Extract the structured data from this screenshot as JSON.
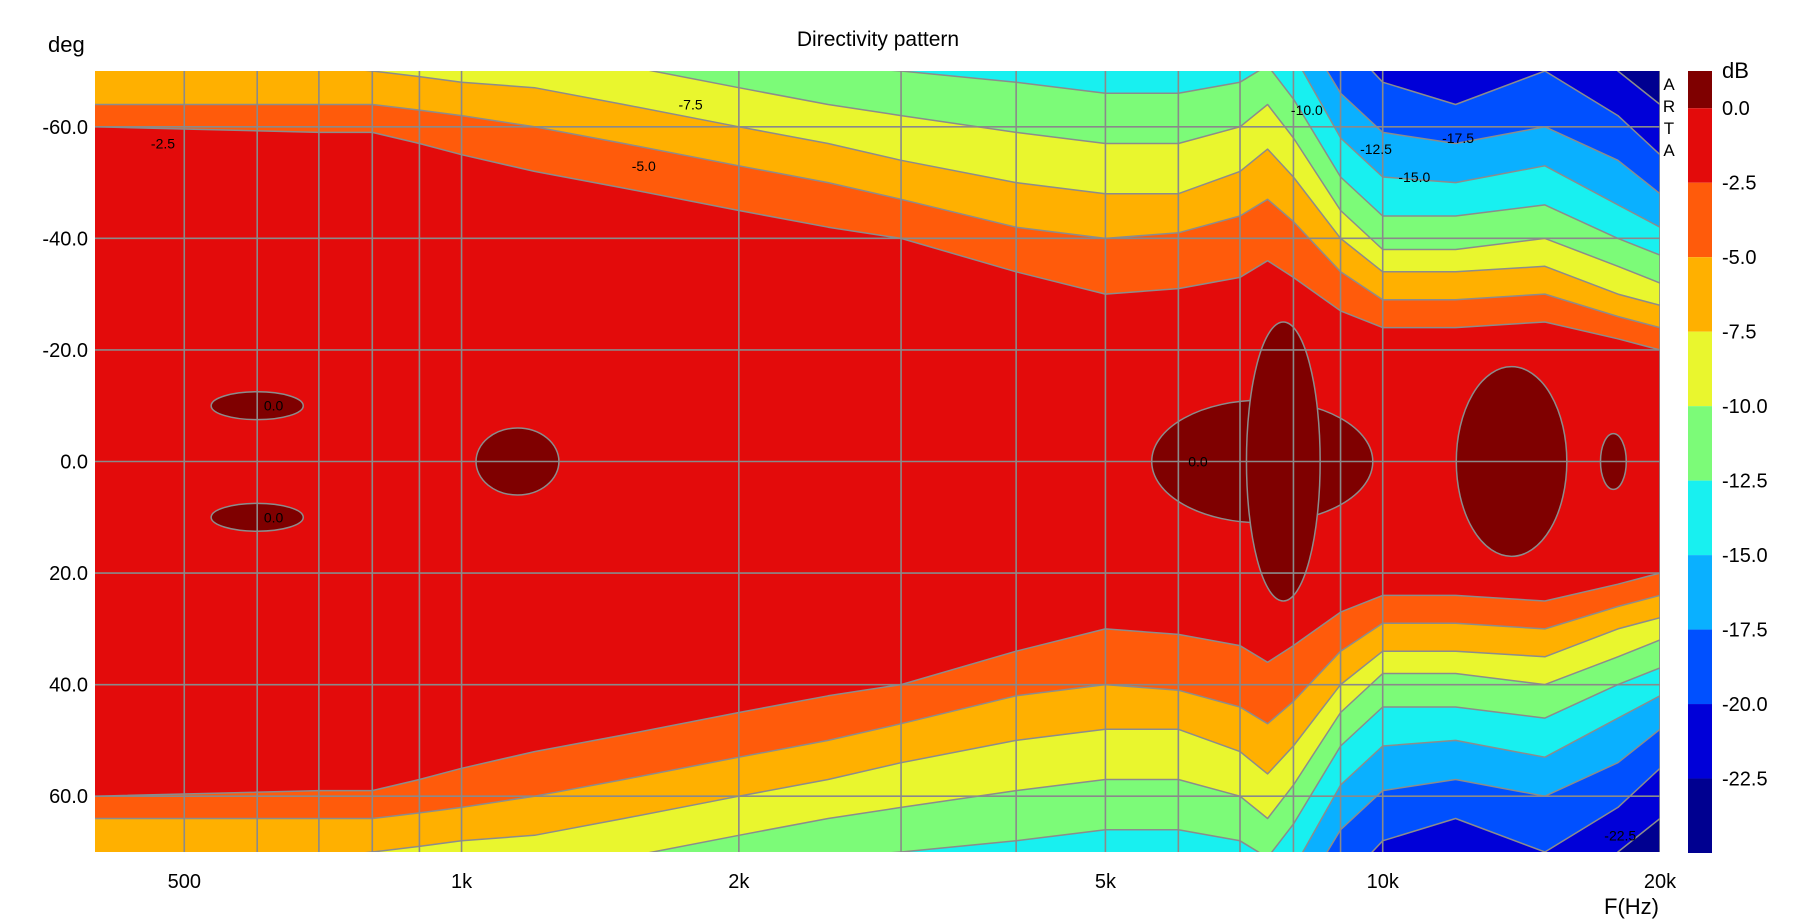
{
  "chart_data": {
    "type": "heatmap",
    "title": "Directivity pattern",
    "ylabel": "deg",
    "xlabel": "F(Hz)",
    "colorbar_label": "dB",
    "watermark": [
      "A",
      "R",
      "T",
      "A"
    ],
    "x_scale": "log",
    "xlim": [
      400,
      20000
    ],
    "ylim": [
      -70,
      70
    ],
    "y_inverted": true,
    "x_ticks": [
      {
        "value": 500,
        "label": "500"
      },
      {
        "value": 1000,
        "label": "1k"
      },
      {
        "value": 2000,
        "label": "2k"
      },
      {
        "value": 5000,
        "label": "5k"
      },
      {
        "value": 10000,
        "label": "10k"
      },
      {
        "value": 20000,
        "label": "20k"
      }
    ],
    "x_minor_grid": [
      600,
      700,
      800,
      900,
      3000,
      4000,
      6000,
      7000,
      8000,
      9000
    ],
    "y_ticks": [
      {
        "value": -60,
        "label": "-60.0"
      },
      {
        "value": -40,
        "label": "-40.0"
      },
      {
        "value": -20,
        "label": "-20.0"
      },
      {
        "value": 0,
        "label": "0.0"
      },
      {
        "value": 20,
        "label": "20.0"
      },
      {
        "value": 40,
        "label": "40.0"
      },
      {
        "value": 60,
        "label": "60.0"
      }
    ],
    "grid": true,
    "colorbar": {
      "levels": [
        "0.0",
        "-2.5",
        "-5.0",
        "-7.5",
        "-10.0",
        "-12.5",
        "-15.0",
        "-17.5",
        "-20.0",
        "-22.5"
      ],
      "colors": [
        "#7f0000",
        "#e30b0b",
        "#ff5b0b",
        "#ffb000",
        "#e9f62e",
        "#7cfb78",
        "#18f0f0",
        "#0ab0ff",
        "#0050ff",
        "#0000d8",
        "#000090"
      ]
    },
    "series": [
      {
        "name": "-2.5",
        "values": [
          [
            400,
            60
          ],
          [
            700,
            59
          ],
          [
            800,
            59
          ],
          [
            900,
            57
          ],
          [
            1000,
            55
          ],
          [
            1200,
            52
          ],
          [
            1500,
            49
          ],
          [
            2000,
            45
          ],
          [
            2500,
            42
          ],
          [
            3000,
            40
          ],
          [
            4000,
            34
          ],
          [
            5000,
            30
          ],
          [
            6000,
            31
          ],
          [
            7000,
            33
          ],
          [
            7500,
            36
          ],
          [
            8000,
            33
          ],
          [
            9000,
            27
          ],
          [
            10000,
            24
          ],
          [
            12000,
            24
          ],
          [
            15000,
            25
          ],
          [
            18000,
            22
          ],
          [
            20000,
            20
          ]
        ]
      },
      {
        "name": "-5.0",
        "values": [
          [
            400,
            64
          ],
          [
            700,
            64
          ],
          [
            800,
            64
          ],
          [
            900,
            63
          ],
          [
            1000,
            62
          ],
          [
            1200,
            60
          ],
          [
            1500,
            57
          ],
          [
            2000,
            53
          ],
          [
            2500,
            50
          ],
          [
            3000,
            47
          ],
          [
            4000,
            42
          ],
          [
            5000,
            40
          ],
          [
            6000,
            41
          ],
          [
            7000,
            44
          ],
          [
            7500,
            47
          ],
          [
            8000,
            43
          ],
          [
            9000,
            34
          ],
          [
            10000,
            29
          ],
          [
            12000,
            29
          ],
          [
            15000,
            30
          ],
          [
            18000,
            26
          ],
          [
            20000,
            24
          ]
        ]
      },
      {
        "name": "-7.5",
        "values": [
          [
            400,
            71
          ],
          [
            700,
            71
          ],
          [
            800,
            70
          ],
          [
            900,
            69
          ],
          [
            1000,
            68
          ],
          [
            1200,
            67
          ],
          [
            1500,
            64
          ],
          [
            2000,
            60
          ],
          [
            2500,
            57
          ],
          [
            3000,
            54
          ],
          [
            4000,
            50
          ],
          [
            5000,
            48
          ],
          [
            6000,
            48
          ],
          [
            7000,
            52
          ],
          [
            7500,
            56
          ],
          [
            8000,
            51
          ],
          [
            9000,
            40
          ],
          [
            10000,
            34
          ],
          [
            12000,
            34
          ],
          [
            15000,
            35
          ],
          [
            18000,
            30
          ],
          [
            20000,
            28
          ]
        ]
      },
      {
        "name": "-10.0",
        "values": [
          [
            400,
            76
          ],
          [
            700,
            76
          ],
          [
            800,
            75
          ],
          [
            900,
            75
          ],
          [
            1000,
            75
          ],
          [
            1200,
            73
          ],
          [
            1500,
            71
          ],
          [
            2000,
            67
          ],
          [
            2500,
            64
          ],
          [
            3000,
            62
          ],
          [
            4000,
            59
          ],
          [
            5000,
            57
          ],
          [
            6000,
            57
          ],
          [
            7000,
            60
          ],
          [
            7500,
            64
          ],
          [
            8000,
            58
          ],
          [
            9000,
            45
          ],
          [
            10000,
            38
          ],
          [
            12000,
            38
          ],
          [
            15000,
            40
          ],
          [
            18000,
            35
          ],
          [
            20000,
            32
          ]
        ]
      },
      {
        "name": "-12.5",
        "values": [
          [
            400,
            80
          ],
          [
            700,
            80
          ],
          [
            800,
            80
          ],
          [
            900,
            80
          ],
          [
            1000,
            80
          ],
          [
            1200,
            79
          ],
          [
            1500,
            77
          ],
          [
            2000,
            73
          ],
          [
            2500,
            71
          ],
          [
            3000,
            70
          ],
          [
            4000,
            68
          ],
          [
            5000,
            66
          ],
          [
            6000,
            66
          ],
          [
            7000,
            68
          ],
          [
            7500,
            71
          ],
          [
            8000,
            65
          ],
          [
            9000,
            51
          ],
          [
            10000,
            44
          ],
          [
            12000,
            44
          ],
          [
            15000,
            46
          ],
          [
            18000,
            40
          ],
          [
            20000,
            37
          ]
        ]
      },
      {
        "name": "-15.0",
        "values": [
          [
            400,
            82
          ],
          [
            700,
            82
          ],
          [
            800,
            82
          ],
          [
            900,
            82
          ],
          [
            1000,
            82
          ],
          [
            1200,
            82
          ],
          [
            1500,
            82
          ],
          [
            2000,
            80
          ],
          [
            2500,
            79
          ],
          [
            3000,
            78
          ],
          [
            4000,
            77
          ],
          [
            5000,
            76
          ],
          [
            6000,
            76
          ],
          [
            7000,
            78
          ],
          [
            7500,
            80
          ],
          [
            8000,
            73
          ],
          [
            9000,
            58
          ],
          [
            10000,
            51
          ],
          [
            12000,
            50
          ],
          [
            15000,
            53
          ],
          [
            18000,
            46
          ],
          [
            20000,
            42
          ]
        ]
      },
      {
        "name": "-17.5",
        "values": [
          [
            400,
            84
          ],
          [
            700,
            84
          ],
          [
            800,
            84
          ],
          [
            900,
            84
          ],
          [
            1000,
            84
          ],
          [
            1200,
            84
          ],
          [
            1500,
            84
          ],
          [
            2000,
            84
          ],
          [
            2500,
            84
          ],
          [
            3000,
            84
          ],
          [
            4000,
            84
          ],
          [
            5000,
            84
          ],
          [
            6000,
            84
          ],
          [
            7000,
            84
          ],
          [
            7500,
            84
          ],
          [
            8000,
            80
          ],
          [
            9000,
            66
          ],
          [
            10000,
            59
          ],
          [
            12000,
            57
          ],
          [
            15000,
            60
          ],
          [
            18000,
            54
          ],
          [
            20000,
            48
          ]
        ]
      },
      {
        "name": "-20.0",
        "values": [
          [
            400,
            86
          ],
          [
            7500,
            86
          ],
          [
            8000,
            86
          ],
          [
            9000,
            76
          ],
          [
            10000,
            68
          ],
          [
            12000,
            64
          ],
          [
            15000,
            70
          ],
          [
            18000,
            62
          ],
          [
            20000,
            55
          ]
        ]
      },
      {
        "name": "-22.5",
        "values": [
          [
            400,
            88
          ],
          [
            15000,
            88
          ],
          [
            16500,
            80
          ],
          [
            18000,
            70
          ],
          [
            20000,
            64
          ]
        ]
      }
    ],
    "peaks_0dB": [
      {
        "f": 600,
        "angle": -10,
        "df": 0.05,
        "dang": 2.5
      },
      {
        "f": 600,
        "angle": 10,
        "df": 0.05,
        "dang": 2.5
      },
      {
        "f": 1150,
        "angle": 0,
        "df": 0.045,
        "dang": 6
      },
      {
        "f": 7400,
        "angle": 0,
        "df": 0.12,
        "dang": 11
      },
      {
        "f": 7800,
        "angle": 0,
        "df": 0.04,
        "dang": 25
      },
      {
        "f": 13800,
        "angle": 0,
        "df": 0.06,
        "dang": 17
      },
      {
        "f": 17800,
        "angle": 0,
        "df": 0.014,
        "dang": 5
      }
    ],
    "contour_labels": [
      {
        "text": "-2.5",
        "f": 460,
        "angle": -57
      },
      {
        "text": "-7.5",
        "f": 1720,
        "angle": -64
      },
      {
        "text": "-5.0",
        "f": 1530,
        "angle": -53
      },
      {
        "text": "-10.0",
        "f": 7950,
        "angle": -63
      },
      {
        "text": "-12.5",
        "f": 9450,
        "angle": -56
      },
      {
        "text": "-17.5",
        "f": 11600,
        "angle": -58
      },
      {
        "text": "-15.0",
        "f": 10400,
        "angle": -51
      },
      {
        "text": "0.0",
        "f": 610,
        "angle": -10
      },
      {
        "text": "0.0",
        "f": 610,
        "angle": 10
      },
      {
        "text": "0.0",
        "f": 6150,
        "angle": 0
      },
      {
        "text": "-22.5",
        "f": 17400,
        "angle": 67
      }
    ]
  }
}
